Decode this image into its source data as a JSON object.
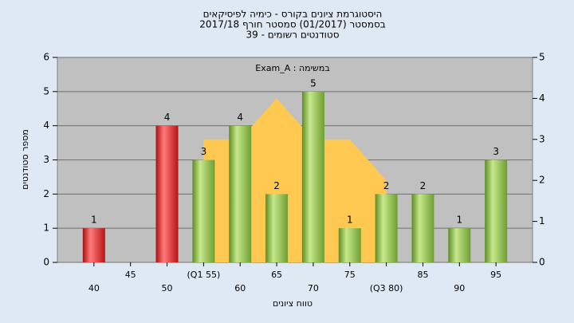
{
  "chart_data": {
    "type": "bar",
    "title": [
      "היסטוגרמת ציונים בקורס - כימיה לפיסיקאים",
      "בסמסטר  (01/2017)  סמסטר חורף 2017/18",
      "39 - סטודנטים רשומים"
    ],
    "annotation": "Exam_A : במשימה",
    "x_label": "טווח ציונים",
    "y_label": "מספר סטודנטים",
    "categories": [
      "40",
      "45",
      "50",
      "(Q1 55)",
      "60",
      "65",
      "70",
      "75",
      "(Q3 80)",
      "85",
      "90",
      "95"
    ],
    "series": [
      {
        "values": [
          1,
          null,
          4,
          3,
          4,
          2,
          5,
          1,
          2,
          2,
          1,
          3
        ],
        "colors": [
          "#e02020",
          null,
          "#e02020",
          "#8cc04a",
          "#8cc04a",
          "#8cc04a",
          "#8cc04a",
          "#8cc04a",
          "#8cc04a",
          "#8cc04a",
          "#8cc04a",
          "#8cc04a"
        ]
      },
      {
        "type": "area",
        "axis": "y2",
        "color": "#ffc850",
        "values": [
          null,
          null,
          null,
          3,
          3,
          4,
          3,
          3,
          2,
          null,
          null,
          null
        ]
      }
    ],
    "ylim": [
      0,
      6
    ],
    "yticks": [
      0,
      1,
      2,
      3,
      4,
      5,
      6
    ],
    "y2lim": [
      0,
      5
    ],
    "y2ticks": [
      0,
      1,
      2,
      3,
      4,
      5
    ],
    "grid": true
  }
}
